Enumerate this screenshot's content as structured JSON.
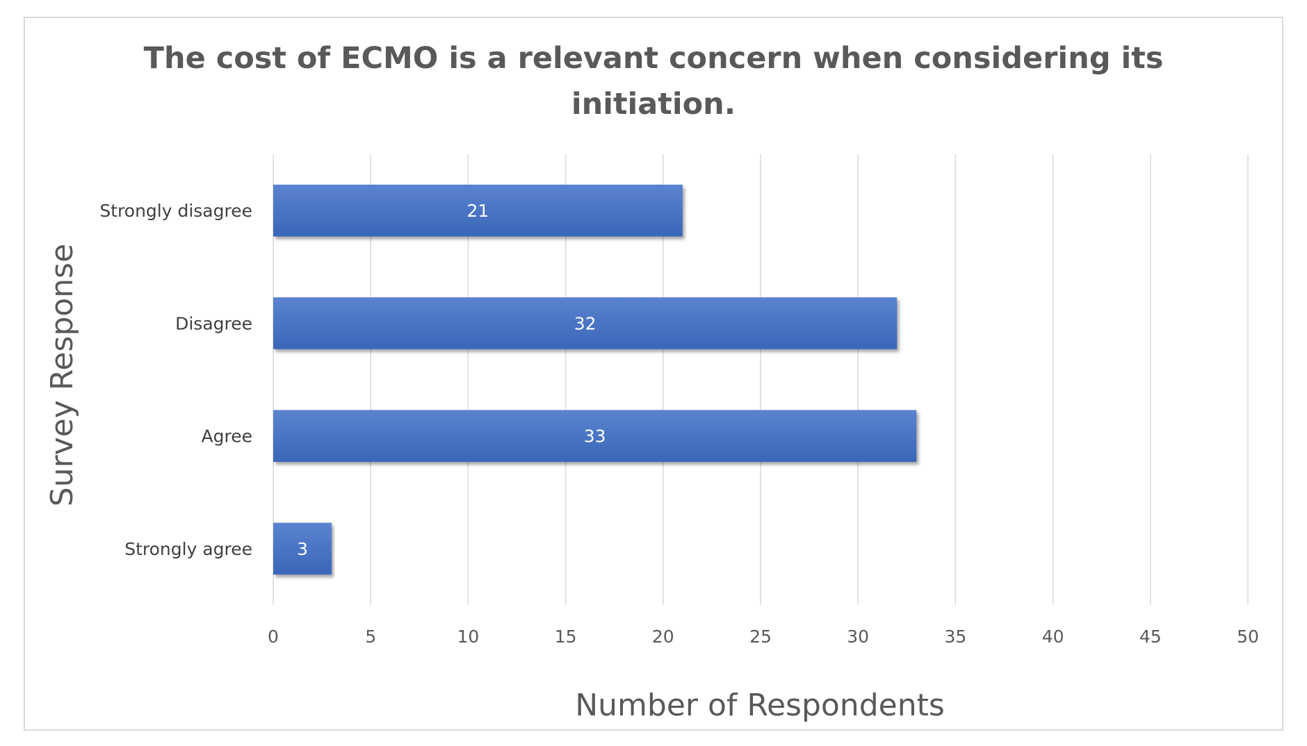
{
  "chart_data": {
    "type": "bar",
    "orientation": "horizontal",
    "title": "The cost of ECMO is a relevant concern when considering its initiation.",
    "title_lines": [
      "The cost of ECMO is a relevant concern when considering its",
      "initiation."
    ],
    "xlabel": "Number of Respondents",
    "ylabel": "Survey Response",
    "categories": [
      "Strongly disagree",
      "Disagree",
      "Agree",
      "Strongly agree"
    ],
    "values": [
      21,
      32,
      33,
      3
    ],
    "data_labels": [
      "21",
      "32",
      "33",
      "3"
    ],
    "xlim": [
      0,
      50
    ],
    "x_ticks": [
      "0",
      "5",
      "10",
      "15",
      "20",
      "25",
      "30",
      "35",
      "40",
      "45",
      "50"
    ],
    "grid": true,
    "legend": "none",
    "colors": {
      "bar": "#4472c4",
      "bar_top": "#5b83cf",
      "grid": "#d9d9d9",
      "text": "#595959"
    }
  }
}
